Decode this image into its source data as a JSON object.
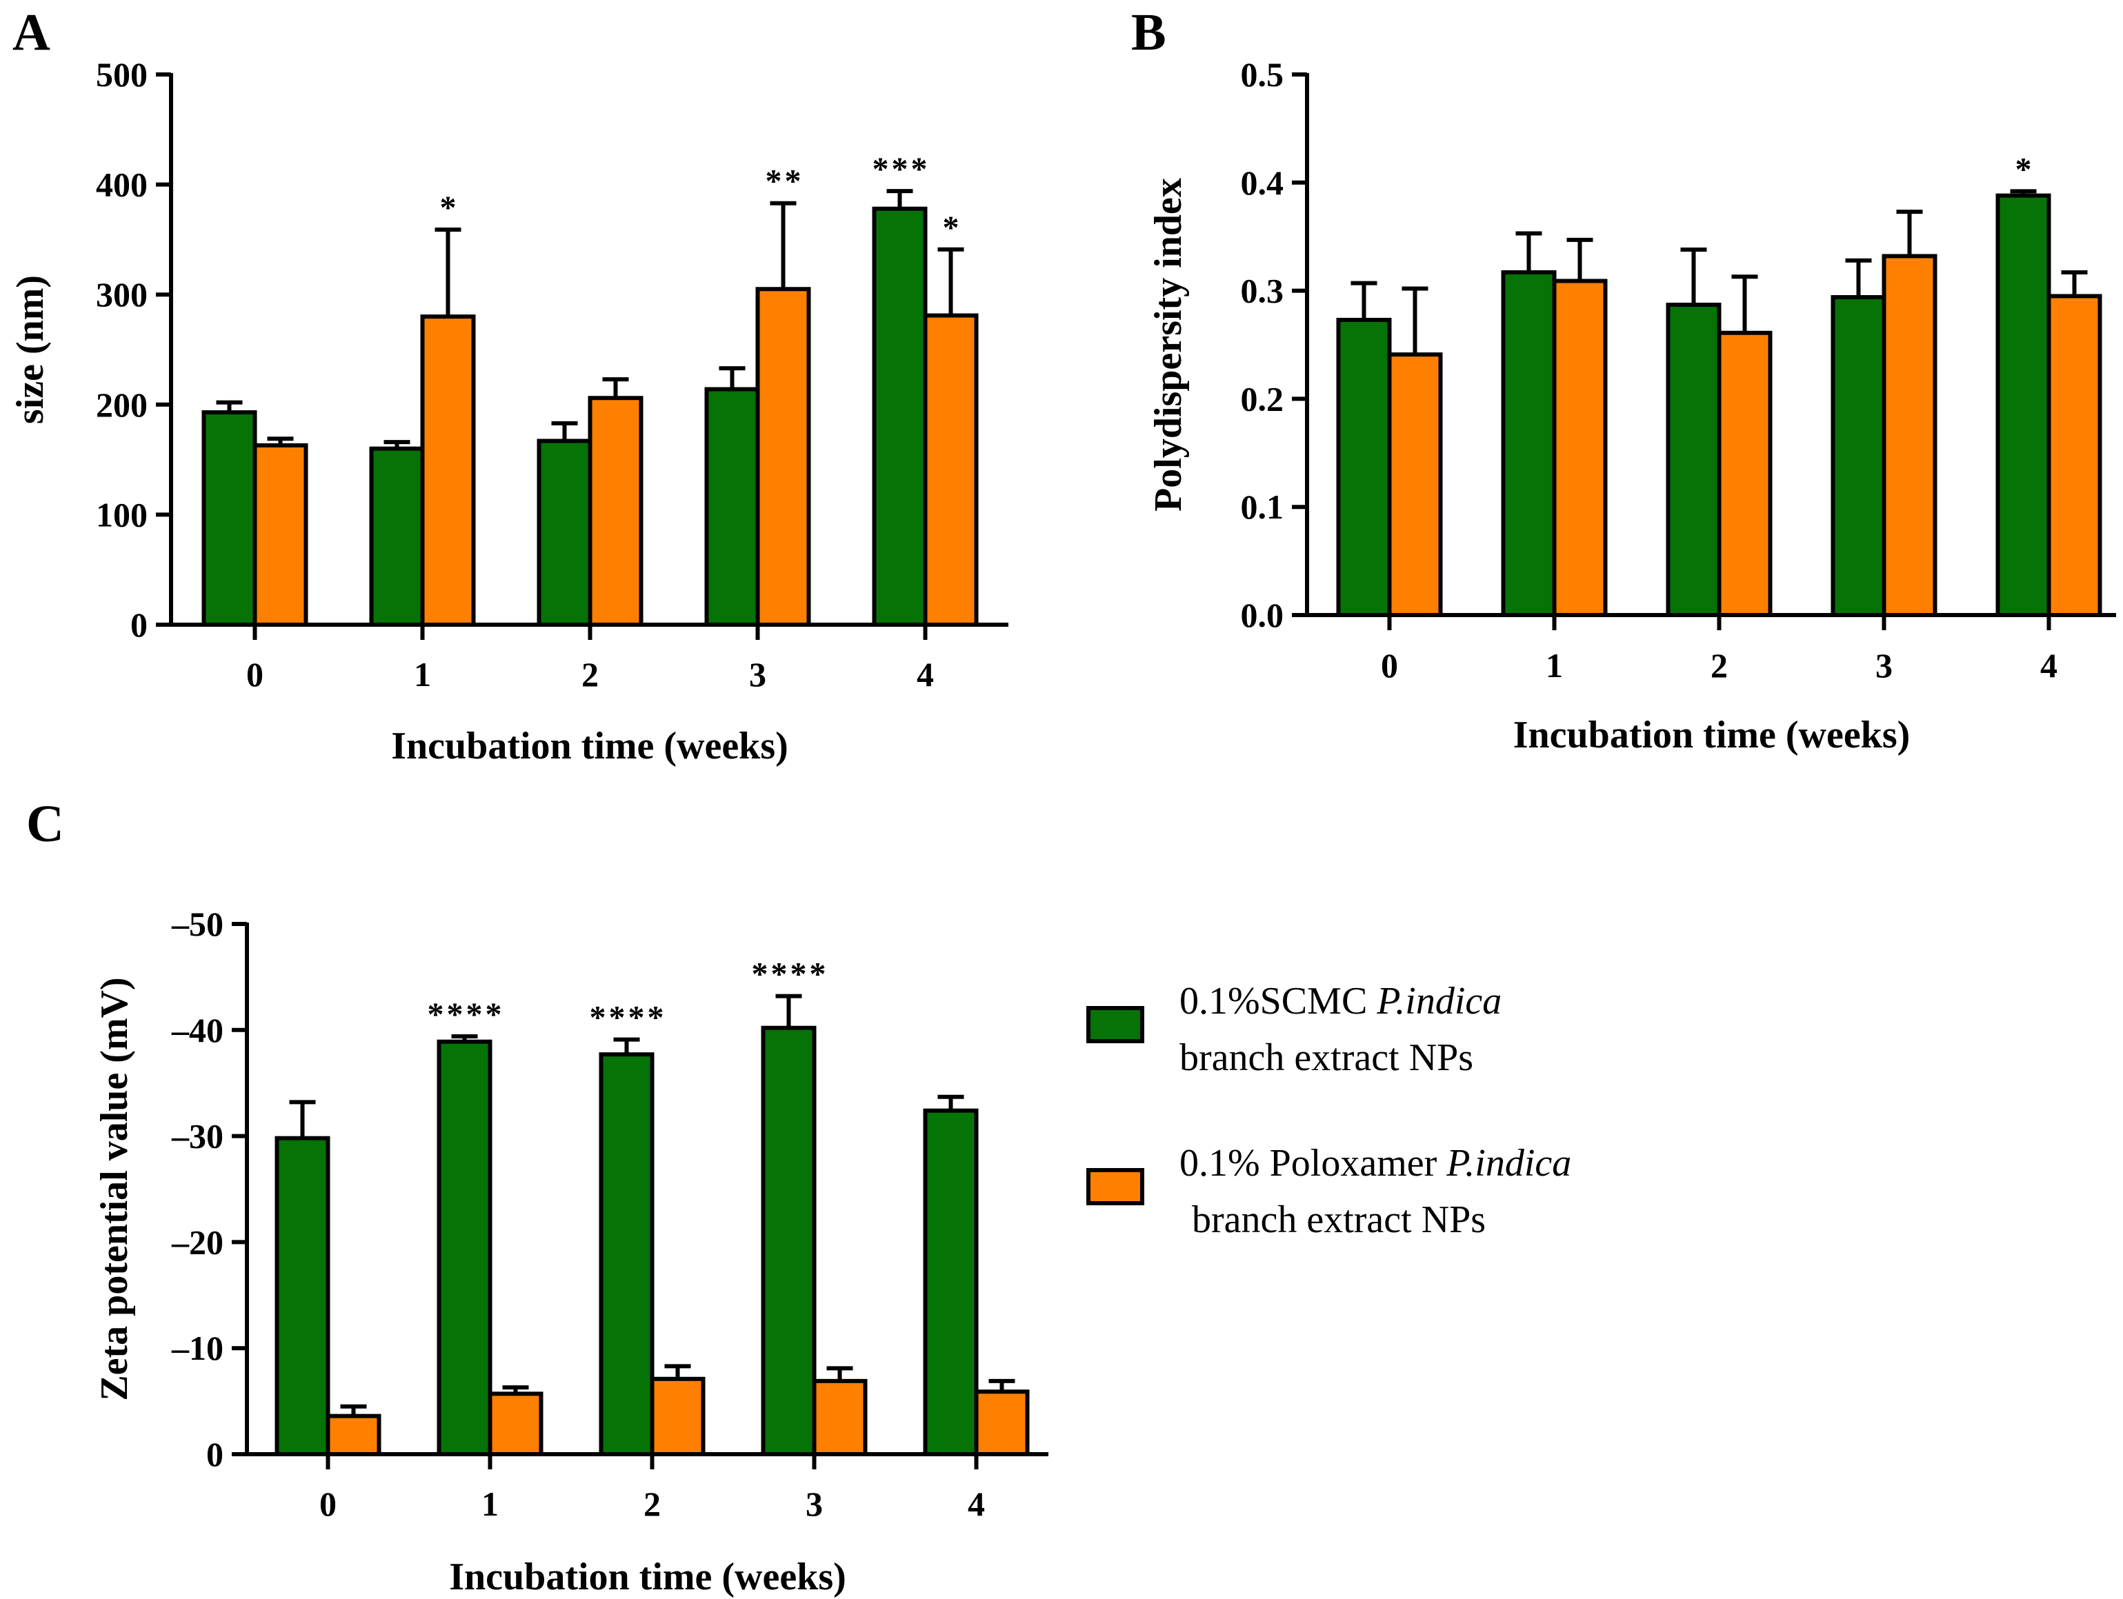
{
  "colors": {
    "green": "#067306",
    "orange": "#ff8000",
    "stroke": "#000000"
  },
  "panel_labels": [
    "A",
    "B",
    "C"
  ],
  "legend": {
    "items": [
      {
        "name": "0.1%SCMC",
        "italic": "P.indica",
        "line2": "branch extract NPs",
        "color": "#067306"
      },
      {
        "name": "0.1% Poloxamer",
        "italic": "P.indica",
        "line2": "branch extract NPs",
        "color": "#ff8000"
      }
    ]
  },
  "chart_data": [
    {
      "id": "A",
      "type": "bar",
      "title": "",
      "xlabel": "Incubation time (weeks)",
      "ylabel": "size (nm)",
      "categories": [
        "0",
        "1",
        "2",
        "3",
        "4"
      ],
      "ylim": [
        0,
        500
      ],
      "yticks": [
        0,
        100,
        200,
        300,
        400,
        500
      ],
      "ytick_labels": [
        "0",
        "100",
        "200",
        "300",
        "400",
        "500"
      ],
      "series": [
        {
          "name": "0.1%SCMC P.indica branch extract NPs",
          "values": [
            193,
            160,
            167,
            214,
            378
          ],
          "errors": [
            9,
            6,
            16,
            19,
            16
          ],
          "significance": [
            "",
            "",
            "",
            "",
            "***"
          ]
        },
        {
          "name": "0.1% Poloxamer P.indica branch extract NPs",
          "values": [
            163,
            280,
            206,
            305,
            281
          ],
          "errors": [
            6,
            79,
            17,
            78,
            60
          ],
          "significance": [
            "",
            "*",
            "",
            "**",
            "*"
          ]
        }
      ]
    },
    {
      "id": "B",
      "type": "bar",
      "title": "",
      "xlabel": "Incubation time (weeks)",
      "ylabel": "Polydispersity index",
      "categories": [
        "0",
        "1",
        "2",
        "3",
        "4"
      ],
      "ylim": [
        0,
        0.5
      ],
      "yticks": [
        0,
        0.1,
        0.2,
        0.3,
        0.4,
        0.5
      ],
      "ytick_labels": [
        "0.0",
        "0.1",
        "0.2",
        "0.3",
        "0.4",
        "0.5"
      ],
      "series": [
        {
          "name": "0.1%SCMC P.indica branch extract NPs",
          "values": [
            0.273,
            0.317,
            0.287,
            0.294,
            0.388
          ],
          "errors": [
            0.034,
            0.036,
            0.051,
            0.034,
            0.004
          ],
          "significance": [
            "",
            "",
            "",
            "",
            "*"
          ]
        },
        {
          "name": "0.1% Poloxamer P.indica branch extract NPs",
          "values": [
            0.241,
            0.309,
            0.261,
            0.332,
            0.295
          ],
          "errors": [
            0.061,
            0.038,
            0.052,
            0.041,
            0.022
          ],
          "significance": [
            "",
            "",
            "",
            "",
            ""
          ]
        }
      ]
    },
    {
      "id": "C",
      "type": "bar",
      "title": "",
      "xlabel": "Incubation time (weeks)",
      "ylabel": "Zeta potential value (mV)",
      "categories": [
        "0",
        "1",
        "2",
        "3",
        "4"
      ],
      "ylim": [
        0,
        -50
      ],
      "yticks": [
        0,
        -10,
        -20,
        -30,
        -40,
        -50
      ],
      "ytick_labels": [
        "0",
        "–10",
        "–20",
        "–30",
        "–40",
        "–50"
      ],
      "series": [
        {
          "name": "0.1%SCMC P.indica branch extract NPs",
          "values": [
            -29.8,
            -38.9,
            -37.7,
            -40.2,
            -32.4
          ],
          "errors": [
            3.4,
            0.5,
            1.4,
            3.0,
            1.3
          ],
          "significance": [
            "",
            "****",
            "****",
            "****",
            ""
          ]
        },
        {
          "name": "0.1% Poloxamer P.indica branch extract NPs",
          "values": [
            -3.6,
            -5.7,
            -7.1,
            -6.9,
            -5.9
          ],
          "errors": [
            0.9,
            0.6,
            1.2,
            1.2,
            1.0
          ],
          "significance": [
            "",
            "",
            "",
            "",
            ""
          ]
        }
      ]
    }
  ]
}
